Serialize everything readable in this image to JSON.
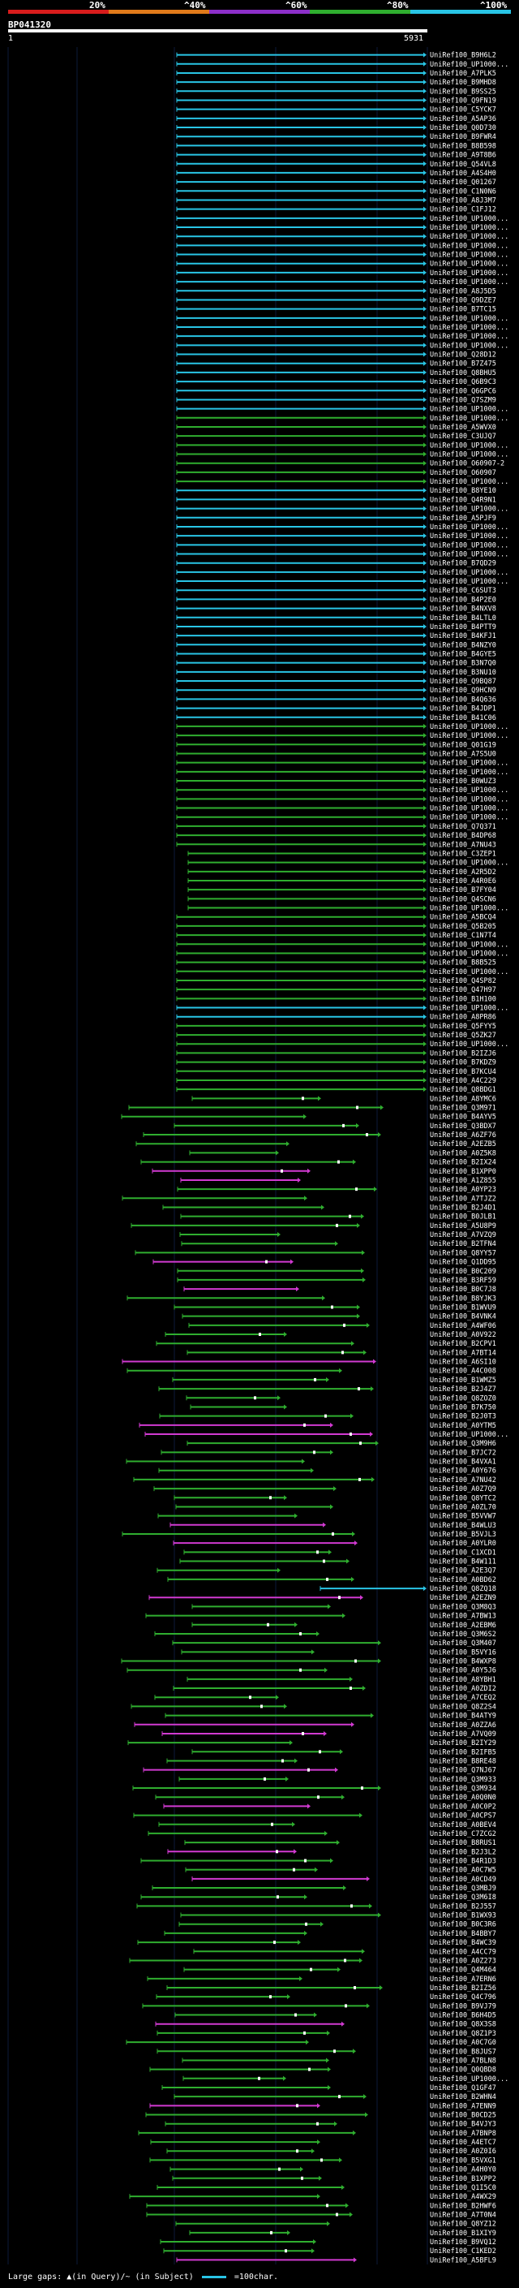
{
  "header": {
    "scale_labels": [
      "20%",
      "^40%",
      "^60%",
      "^80%",
      "^100%"
    ],
    "scale_colors": [
      "#d81c1c",
      "#e07a1a",
      "#8c2fc9",
      "#2fae2f",
      "#29c5e6"
    ],
    "query_id": "BP041320",
    "pos_start": "1",
    "pos_end": "5931"
  },
  "colors": {
    "cyan": "#29c5e6",
    "green": "#2fae2f",
    "magenta": "#d13ad1",
    "white": "#ffffff"
  },
  "hits": [
    "UniRef100_B9H6L2",
    "UniRef100_UP1000...",
    "UniRef100_A7PLK5",
    "UniRef100_B9MHD8",
    "UniRef100_B9SS25",
    "UniRef100_Q9FN19",
    "UniRef100_C5YCK7",
    "UniRef100_A5AP36",
    "UniRef100_Q0D730",
    "UniRef100_B9FWR4",
    "UniRef100_B8B598",
    "UniRef100_A9T8B6",
    "UniRef100_Q54VL8",
    "UniRef100_A4S4H0",
    "UniRef100_Q01267",
    "UniRef100_C1N0N6",
    "UniRef100_A8J3M7",
    "UniRef100_C1FJ12",
    "UniRef100_UP1000...",
    "UniRef100_UP1000...",
    "UniRef100_UP1000...",
    "UniRef100_UP1000...",
    "UniRef100_UP1000...",
    "UniRef100_UP1000...",
    "UniRef100_UP1000...",
    "UniRef100_UP1000...",
    "UniRef100_A8J5D5",
    "UniRef100_Q9DZE7",
    "UniRef100_B7TC15",
    "UniRef100_UP1000...",
    "UniRef100_UP1000...",
    "UniRef100_UP1000...",
    "UniRef100_UP1000...",
    "UniRef100_Q28D12",
    "UniRef100_B7Z475",
    "UniRef100_Q8BHU5",
    "UniRef100_Q6B9C3",
    "UniRef100_Q6GPC6",
    "UniRef100_Q7SZM9",
    "UniRef100_UP1000...",
    "UniRef100_UP1000...",
    "UniRef100_A5WVX0",
    "UniRef100_C3UJQ7",
    "UniRef100_UP1000...",
    "UniRef100_UP1000...",
    "UniRef100_O60907-2",
    "UniRef100_O60907",
    "UniRef100_UP1000...",
    "UniRef100_B8YE10",
    "UniRef100_Q4R9N1",
    "UniRef100_UP1000...",
    "UniRef100_A5PJF9",
    "UniRef100_UP1000...",
    "UniRef100_UP1000...",
    "UniRef100_UP1000...",
    "UniRef100_UP1000...",
    "UniRef100_B7QD29",
    "UniRef100_UP1000...",
    "UniRef100_UP1000...",
    "UniRef100_C6SUT3",
    "UniRef100_B4P2E0",
    "UniRef100_B4NXV8",
    "UniRef100_B4LTL0",
    "UniRef100_B4PTT9",
    "UniRef100_B4KFJ1",
    "UniRef100_B4NZY0",
    "UniRef100_B4GYE5",
    "UniRef100_B3N7Q0",
    "UniRef100_B3NU10",
    "UniRef100_Q9BQ87",
    "UniRef100_Q9HCN9",
    "UniRef100_B4Q636",
    "UniRef100_B4JDP1",
    "UniRef100_B41C06",
    "UniRef100_UP1000...",
    "UniRef100_UP1000...",
    "UniRef100_Q01G19",
    "UniRef100_A7S5U0",
    "UniRef100_UP1000...",
    "UniRef100_UP1000...",
    "UniRef100_B0WUZ3",
    "UniRef100_UP1000...",
    "UniRef100_UP1000...",
    "UniRef100_UP1000...",
    "UniRef100_UP1000...",
    "UniRef100_Q7Q371",
    "UniRef100_B4DP68",
    "UniRef100_A7NU43",
    "UniRef100_C3ZEP1",
    "UniRef100_UP1000...",
    "UniRef100_A2R5D2",
    "UniRef100_A4R0E6",
    "UniRef100_B7FY04",
    "UniRef100_Q4SCN6",
    "UniRef100_UP1000...",
    "UniRef100_A5BCQ4",
    "UniRef100_Q5B205",
    "UniRef100_C1N7T4",
    "UniRef100_UP1000...",
    "UniRef100_UP1000...",
    "UniRef100_B8B525",
    "UniRef100_UP1000...",
    "UniRef100_Q4SP82",
    "UniRef100_Q47H97",
    "UniRef100_B1H100",
    "UniRef100_UP1000...",
    "UniRef100_A8PR86",
    "UniRef100_Q5FYY5",
    "UniRef100_Q5ZK27",
    "UniRef100_UP1000...",
    "UniRef100_B2IZJ6",
    "UniRef100_B7KDZ9",
    "UniRef100_B7KCU4",
    "UniRef100_A4C229",
    "UniRef100_Q8BDG1",
    "UniRef100_A8YMC6",
    "UniRef100_Q3M971",
    "UniRef100_B4AYV5",
    "UniRef100_Q3BDX7",
    "UniRef100_A6ZF76",
    "UniRef100_A2EZB5",
    "UniRef100_A0Z5K8",
    "UniRef100_B2IX24",
    "UniRef100_B1XPP0",
    "UniRef100_A1Z855",
    "UniRef100_A0YP23",
    "UniRef100_A7TJZ2",
    "UniRef100_B2J4D1",
    "UniRef100_B0JLB1",
    "UniRef100_A5U8P9",
    "UniRef100_A7VZQ9",
    "UniRef100_B2TFN4",
    "UniRef100_Q8YY57",
    "UniRef100_Q1DD95",
    "UniRef100_B0C209",
    "UniRef100_B3RF59",
    "UniRef100_B0C7J8",
    "UniRef100_B8YJK3",
    "UniRef100_B1WVU9",
    "UniRef100_B4VNK4",
    "UniRef100_A4WF06",
    "UniRef100_A0V922",
    "UniRef100_B2CPV1",
    "UniRef100_A7BT14",
    "UniRef100_A6SI10",
    "UniRef100_A4C008",
    "UniRef100_B1WMZ5",
    "UniRef100_B2J4Z7",
    "UniRef100_Q8ZOZ0",
    "UniRef100_B7K750",
    "UniRef100_B2J0T3",
    "UniRef100_A0YTM5",
    "UniRef100_UP1000...",
    "UniRef100_Q3M9H6",
    "UniRef100_B7JC72",
    "UniRef100_B4VXA1",
    "UniRef100_A0Y676",
    "UniRef100_A7NU42",
    "UniRef100_A0Z7Q9",
    "UniRef100_Q8YTC2",
    "UniRef100_A0ZL70",
    "UniRef100_B5VVW7",
    "UniRef100_B4WLU3",
    "UniRef100_B5VJL3",
    "UniRef100_A0YLR0",
    "UniRef100_C1XCD1",
    "UniRef100_B4W111",
    "UniRef100_A2E3Q7",
    "UniRef100_A0BD62",
    "UniRef100_Q8ZQ18",
    "UniRef100_A2EZN9",
    "UniRef100_Q3M8Q3",
    "UniRef100_A7BW13",
    "UniRef100_A2EBM6",
    "UniRef100_Q3M6S2",
    "UniRef100_Q3M407",
    "UniRef100_B5VY16",
    "UniRef100_B4WXP8",
    "UniRef100_A0Y5J6",
    "UniRef100_A8YBH1",
    "UniRef100_A0ZDI2",
    "UniRef100_A7CEQ2",
    "UniRef100_Q8Z2S4",
    "UniRef100_B4ATY9",
    "UniRef100_A0ZZA6",
    "UniRef100_A7VQ09",
    "UniRef100_B2IY29",
    "UniRef100_B2IFB5",
    "UniRef100_B8RE48",
    "UniRef100_Q7NJ67",
    "UniRef100_Q3M933",
    "UniRef100_Q3M934",
    "UniRef100_A0Q0N0",
    "UniRef100_A0C0P2",
    "UniRef100_A0CPS7",
    "UniRef100_A0BEV4",
    "UniRef100_C7ZCG2",
    "UniRef100_B8RUS1",
    "UniRef100_B2J3L2",
    "UniRef100_B4R1D3",
    "UniRef100_A0C7W5",
    "UniRef100_A0CD49",
    "UniRef100_Q3MBJ9",
    "UniRef100_Q3M6I8",
    "UniRef100_B2J557",
    "UniRef100_B1WX93",
    "UniRef100_B0C3R6",
    "UniRef100_B4BBY7",
    "UniRef100_B4WC39",
    "UniRef100_A4CC79",
    "UniRef100_A0Z273",
    "UniRef100_Q4M464",
    "UniRef100_A7ERN6",
    "UniRef100_B2IZ56",
    "UniRef100_Q4C796",
    "UniRef100_B9VJ79",
    "UniRef100_B6H4D5",
    "UniRef100_Q8X3S8",
    "UniRef100_Q8Z1P3",
    "UniRef100_A0C7G0",
    "UniRef100_B8JUS7",
    "UniRef100_A7BLN8",
    "UniRef100_Q0QBD8",
    "UniRef100_UP1000...",
    "UniRef100_Q1GF47",
    "UniRef100_B2WHN4",
    "UniRef100_A7ENN9",
    "UniRef100_B0CD25",
    "UniRef100_B4VJY3",
    "UniRef100_A7BNP8",
    "UniRef100_A4ETC7",
    "UniRef100_A0Z0I6",
    "UniRef100_B5VXG1",
    "UniRef100_A4H0Y0",
    "UniRef100_B1XPP2",
    "UniRef100_Q1I5C0",
    "UniRef100_A4WX29",
    "UniRef100_B2HWF6",
    "UniRef100_A7T0N4",
    "UniRef100_Q8YZ12",
    "UniRef100_B1XIY9",
    "UniRef100_B9VQ12",
    "UniRef100_C1KED2",
    "UniRef100_A5BFL9"
  ],
  "footer": {
    "legend_text": "Large gaps: ▲(in Query)/~ (in Subject)",
    "scale_text": "=100char."
  }
}
